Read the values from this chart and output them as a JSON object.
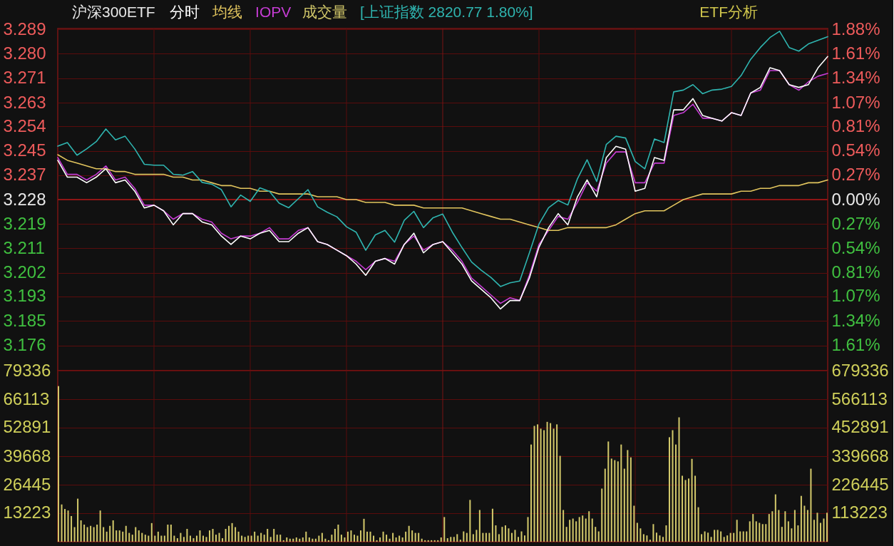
{
  "chart_data": [
    {
      "type": "line",
      "title": "沪深300ETF",
      "categories": [
        null,
        null,
        null,
        null,
        null,
        null,
        null,
        null,
        null,
        null,
        null,
        null,
        null,
        null,
        null,
        null,
        null,
        null,
        null,
        null,
        null,
        null,
        null,
        null,
        null,
        null,
        null,
        null,
        null,
        null,
        null,
        null,
        null,
        null,
        null,
        null,
        null,
        null,
        null,
        null,
        null,
        null,
        null,
        null,
        null,
        null,
        null,
        null,
        null,
        null,
        null,
        null,
        null,
        null,
        null,
        null,
        null,
        null,
        null,
        null,
        null,
        null,
        null,
        null,
        null,
        null,
        null,
        null,
        null,
        null,
        null,
        null,
        null,
        null,
        null,
        null,
        null,
        null,
        null,
        null,
        null
      ],
      "series": [
        {
          "name": "分时",
          "color": "#ffffff",
          "values": [
            3.242,
            3.236,
            3.236,
            3.234,
            3.236,
            3.239,
            3.234,
            3.235,
            3.231,
            3.225,
            3.226,
            3.224,
            3.219,
            3.223,
            3.223,
            3.22,
            3.219,
            3.215,
            3.212,
            3.215,
            3.214,
            3.216,
            3.217,
            3.213,
            3.213,
            3.216,
            3.218,
            3.213,
            3.212,
            3.21,
            3.208,
            3.205,
            3.201,
            3.206,
            3.207,
            3.205,
            3.212,
            3.216,
            3.209,
            3.212,
            3.213,
            3.209,
            3.205,
            3.199,
            3.196,
            3.193,
            3.189,
            3.192,
            3.192,
            3.2,
            3.211,
            3.218,
            3.223,
            3.219,
            3.229,
            3.235,
            3.229,
            3.243,
            3.247,
            3.246,
            3.231,
            3.232,
            3.243,
            3.242,
            3.26,
            3.26,
            3.264,
            3.258,
            3.257,
            3.256,
            3.259,
            3.258,
            3.266,
            3.268,
            3.275,
            3.274,
            3.269,
            3.268,
            3.269,
            3.275,
            3.279
          ]
        },
        {
          "name": "均线",
          "color": "#e2c55e",
          "values": [
            3.244,
            3.242,
            3.241,
            3.24,
            3.239,
            3.239,
            3.238,
            3.238,
            3.237,
            3.237,
            3.237,
            3.237,
            3.236,
            3.236,
            3.235,
            3.235,
            3.234,
            3.233,
            3.233,
            3.232,
            3.232,
            3.231,
            3.231,
            3.23,
            3.23,
            3.23,
            3.23,
            3.229,
            3.229,
            3.229,
            3.228,
            3.228,
            3.227,
            3.227,
            3.227,
            3.226,
            3.226,
            3.226,
            3.225,
            3.225,
            3.225,
            3.225,
            3.225,
            3.224,
            3.223,
            3.222,
            3.221,
            3.221,
            3.22,
            3.219,
            3.218,
            3.217,
            3.217,
            3.218,
            3.218,
            3.218,
            3.218,
            3.218,
            3.219,
            3.221,
            3.223,
            3.224,
            3.224,
            3.224,
            3.226,
            3.228,
            3.229,
            3.23,
            3.23,
            3.23,
            3.23,
            3.231,
            3.231,
            3.232,
            3.232,
            3.233,
            3.233,
            3.233,
            3.234,
            3.234,
            3.235
          ]
        },
        {
          "name": "IOPV",
          "color": "#c43cd2",
          "values": [
            3.243,
            3.237,
            3.237,
            3.235,
            3.237,
            3.24,
            3.235,
            3.236,
            3.232,
            3.226,
            3.226,
            3.224,
            3.221,
            3.223,
            3.223,
            3.221,
            3.22,
            3.216,
            3.214,
            3.215,
            3.215,
            3.216,
            3.218,
            3.214,
            3.214,
            3.217,
            3.218,
            3.213,
            3.212,
            3.21,
            3.208,
            3.206,
            3.203,
            3.206,
            3.207,
            3.206,
            3.212,
            3.215,
            3.21,
            3.212,
            3.213,
            3.21,
            3.206,
            3.2,
            3.197,
            3.194,
            3.191,
            3.193,
            3.192,
            3.201,
            3.212,
            3.217,
            3.222,
            3.221,
            3.227,
            3.234,
            3.231,
            3.241,
            3.245,
            3.245,
            3.234,
            3.234,
            3.241,
            3.241,
            3.258,
            3.259,
            3.262,
            3.257,
            3.257,
            3.256,
            3.259,
            3.258,
            3.266,
            3.267,
            3.274,
            3.274,
            3.269,
            3.267,
            3.27,
            3.272,
            3.273
          ]
        },
        {
          "name": "[上证指数 2820.77 1.80%]",
          "color": "#2fb5b0",
          "axis": "y2",
          "values": [
            0.59,
            0.63,
            0.49,
            0.56,
            0.64,
            0.78,
            0.66,
            0.7,
            0.56,
            0.39,
            0.38,
            0.38,
            0.28,
            0.27,
            0.31,
            0.19,
            0.17,
            0.11,
            -0.08,
            0.05,
            -0.02,
            0.13,
            0.09,
            -0.04,
            -0.09,
            0.01,
            0.11,
            -0.08,
            -0.14,
            -0.19,
            -0.3,
            -0.36,
            -0.56,
            -0.39,
            -0.34,
            -0.47,
            -0.23,
            -0.13,
            -0.31,
            -0.2,
            -0.16,
            -0.36,
            -0.53,
            -0.69,
            -0.78,
            -0.86,
            -0.96,
            -0.92,
            -0.9,
            -0.59,
            -0.27,
            -0.09,
            -0.01,
            -0.06,
            0.23,
            0.44,
            0.2,
            0.61,
            0.7,
            0.68,
            0.42,
            0.34,
            0.67,
            0.63,
            1.19,
            1.21,
            1.27,
            1.17,
            1.21,
            1.22,
            1.25,
            1.37,
            1.55,
            1.68,
            1.79,
            1.86,
            1.68,
            1.64,
            1.72,
            1.76,
            1.8
          ]
        }
      ],
      "ylim": [
        3.167,
        3.289
      ],
      "yticks": [
        {
          "value": 3.2887,
          "label": "3.289"
        },
        {
          "value": 3.28,
          "label": "3.280"
        },
        {
          "value": 3.2713,
          "label": "3.271"
        },
        {
          "value": 3.26254,
          "label": "3.263"
        },
        {
          "value": 3.2541,
          "label": "3.254"
        },
        {
          "value": 3.2454,
          "label": "3.245"
        },
        {
          "value": 3.2367,
          "label": "3.237"
        },
        3.228,
        {
          "value": 3.2193,
          "label": "3.219"
        },
        {
          "value": 3.2106,
          "label": "3.211"
        },
        {
          "value": 3.2019,
          "label": "3.202"
        },
        {
          "value": 3.19346,
          "label": "3.193"
        },
        {
          "value": 3.1847,
          "label": "3.185"
        },
        3.176
      ],
      "y2lim": [
        -1.89,
        1.89
      ],
      "y2ticks": [
        {
          "value": 1.88,
          "label": "1.88%"
        },
        {
          "value": 1.61,
          "label": "1.61%"
        },
        {
          "value": 1.34,
          "label": "1.34%"
        },
        {
          "value": 1.07,
          "label": "1.07%"
        },
        {
          "value": 0.81,
          "label": "0.81%"
        },
        {
          "value": 0.54,
          "label": "0.54%"
        },
        {
          "value": 0.27,
          "label": "0.27%"
        },
        {
          "value": 0,
          "label": "0.00%"
        },
        {
          "value": -0.27,
          "label": "0.27%"
        },
        {
          "value": -0.54,
          "label": "0.54%"
        },
        {
          "value": -0.81,
          "label": "0.81%"
        },
        {
          "value": -1.07,
          "label": "1.07%"
        },
        {
          "value": -1.34,
          "label": "1.34%"
        },
        {
          "value": -1.61,
          "label": "1.61%"
        }
      ],
      "ref_lines": [
        {
          "axis": "y",
          "value": 3.228,
          "color": "#8e1616"
        }
      ],
      "grid": true,
      "legend": "top",
      "tick_labels": "y",
      "annotations": [
        "ETF分析"
      ]
    },
    {
      "type": "bar",
      "categories": [
        null,
        null,
        null,
        null,
        null,
        null,
        null,
        null,
        null,
        null,
        null,
        null,
        null,
        null,
        null,
        null,
        null,
        null,
        null,
        null,
        null,
        null,
        null,
        null,
        null,
        null,
        null,
        null,
        null,
        null,
        null,
        null,
        null,
        null,
        null,
        null,
        null,
        null,
        null,
        null,
        null,
        null,
        null,
        null,
        null,
        null,
        null,
        null,
        null,
        null,
        null,
        null,
        null,
        null,
        null,
        null,
        null,
        null,
        null,
        null,
        null,
        null,
        null,
        null,
        null,
        null,
        null,
        null,
        null,
        null,
        null,
        null,
        null,
        null,
        null,
        null,
        null,
        null,
        null,
        null,
        null,
        null,
        null,
        null,
        null,
        null,
        null,
        null,
        null,
        null,
        null,
        null,
        null,
        null,
        null,
        null,
        null,
        null,
        null,
        null,
        null,
        null,
        null,
        null,
        null,
        null,
        null,
        null,
        null,
        null,
        null,
        null,
        null,
        null,
        null,
        null,
        null,
        null,
        null,
        null,
        null,
        null,
        null,
        null,
        null,
        null,
        null,
        null,
        null,
        null,
        null,
        null,
        null,
        null,
        null,
        null,
        null,
        null,
        null,
        null,
        null,
        null,
        null,
        null,
        null,
        null,
        null,
        null,
        null,
        null,
        null,
        null,
        null,
        null,
        null,
        null,
        null,
        null,
        null,
        null,
        null,
        null,
        null,
        null,
        null,
        null,
        null,
        null,
        null,
        null,
        null,
        null,
        null,
        null,
        null,
        null,
        null,
        null,
        null,
        null,
        null,
        null,
        null,
        null,
        null,
        null,
        null,
        null,
        null,
        null,
        null,
        null,
        null,
        null,
        null,
        null,
        null,
        null,
        null,
        null,
        null,
        null,
        null,
        null,
        null,
        null,
        null,
        null,
        null,
        null,
        null,
        null,
        null,
        null,
        null,
        null,
        null,
        null,
        null,
        null,
        null,
        null,
        null,
        null,
        null,
        null,
        null,
        null,
        null,
        null,
        null,
        null,
        null,
        null,
        null,
        null,
        null,
        null,
        null,
        null
      ],
      "series": [
        {
          "name": "成交量",
          "color": "#d2c86a",
          "axis": "y2",
          "values": [
            618000,
            148000,
            130000,
            124000,
            102000,
            58000,
            171000,
            85000,
            68000,
            58000,
            63000,
            58000,
            68000,
            124000,
            58000,
            40000,
            63000,
            85000,
            45000,
            45000,
            40000,
            63000,
            35000,
            28000,
            58000,
            45000,
            35000,
            28000,
            24000,
            74000,
            24000,
            40000,
            24000,
            24000,
            68000,
            68000,
            24000,
            14000,
            35000,
            19000,
            51000,
            24000,
            14000,
            24000,
            45000,
            24000,
            19000,
            45000,
            51000,
            28000,
            35000,
            14000,
            51000,
            63000,
            74000,
            58000,
            40000,
            24000,
            19000,
            24000,
            24000,
            40000,
            24000,
            35000,
            28000,
            51000,
            19000,
            51000,
            28000,
            28000,
            6000,
            17000,
            12000,
            12000,
            17000,
            12000,
            17000,
            40000,
            17000,
            12000,
            12000,
            24000,
            35000,
            12000,
            6000,
            28000,
            51000,
            68000,
            28000,
            17000,
            40000,
            45000,
            28000,
            24000,
            45000,
            91000,
            40000,
            40000,
            24000,
            6000,
            17000,
            40000,
            28000,
            12000,
            35000,
            17000,
            24000,
            17000,
            40000,
            63000,
            45000,
            35000,
            35000,
            12000,
            6000,
            6000,
            6000,
            6000,
            6000,
            17000,
            98000,
            14000,
            19000,
            19000,
            30000,
            8000,
            41000,
            35000,
            166000,
            30000,
            47000,
            126000,
            35000,
            35000,
            35000,
            131000,
            65000,
            30000,
            59000,
            65000,
            53000,
            35000,
            47000,
            19000,
            41000,
            25000,
            98000,
            386000,
            460000,
            466000,
            449000,
            443000,
            476000,
            471000,
            449000,
            466000,
            341000,
            126000,
            59000,
            87000,
            92000,
            81000,
            98000,
            104000,
            92000,
            121000,
            92000,
            59000,
            41000,
            211000,
            290000,
            398000,
            330000,
            324000,
            319000,
            386000,
            290000,
            364000,
            335000,
            143000,
            75000,
            53000,
            30000,
            25000,
            8000,
            70000,
            36000,
            25000,
            19000,
            65000,
            415000,
            443000,
            386000,
            494000,
            262000,
            245000,
            251000,
            329000,
            262000,
            137000,
            30000,
            41000,
            36000,
            19000,
            47000,
            47000,
            41000,
            19000,
            25000,
            35000,
            35000,
            87000,
            41000,
            41000,
            41000,
            81000,
            110000,
            81000,
            75000,
            70000,
            70000,
            110000,
            121000,
            188000,
            126000,
            59000,
            121000,
            81000,
            53000,
            126000,
            65000,
            182000,
            143000,
            126000,
            290000,
            87000,
            115000,
            75000,
            92000,
            115000
          ]
        }
      ],
      "ylim": [
        0,
        79336
      ],
      "yticks": [
        79336,
        66113,
        52891,
        39668,
        26445,
        13223
      ],
      "y2lim": [
        0,
        679336
      ],
      "y2ticks": [
        679336,
        566113,
        452891,
        339668,
        226445,
        113223
      ],
      "grid": true,
      "legend": "top",
      "tick_labels": "y"
    }
  ]
}
